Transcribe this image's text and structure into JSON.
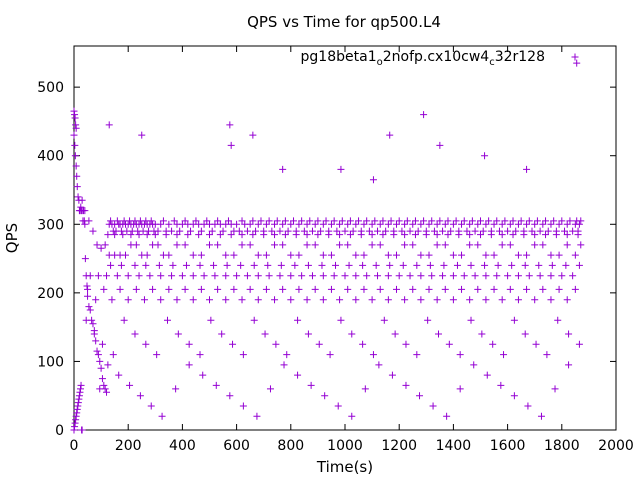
{
  "chart_data": {
    "type": "scatter",
    "title": "QPS vs Time for qp500.L4",
    "xlabel": "Time(s)",
    "ylabel": "QPS",
    "xlim": [
      0,
      2000
    ],
    "ylim": [
      0,
      560
    ],
    "xticks": [
      0,
      200,
      400,
      600,
      800,
      1000,
      1200,
      1400,
      1600,
      1800,
      2000
    ],
    "yticks": [
      0,
      100,
      200,
      300,
      400,
      500
    ],
    "grid": false,
    "legend_position": "top-right",
    "marker": "+",
    "color": "#9400d3",
    "series": [
      {
        "legend": {
          "base": "pg18beta1",
          "sub1": "o",
          "mid": "2nofp.cx10cw4",
          "sub2": "c",
          "tail": "32r128"
        },
        "x": [
          0,
          3,
          5,
          8,
          10,
          12,
          15,
          18,
          20,
          22,
          25,
          27,
          30,
          33,
          35,
          38,
          40,
          42,
          45,
          48,
          50,
          55,
          60,
          65,
          70,
          75,
          80,
          85,
          90,
          95,
          100,
          105,
          110,
          115,
          120,
          130,
          135,
          140,
          145,
          150,
          155,
          160,
          165,
          170,
          175,
          180,
          185,
          190,
          195,
          200,
          205,
          210,
          215,
          220,
          225,
          230,
          235,
          240,
          245,
          250,
          255,
          260,
          265,
          270,
          275,
          280,
          285,
          290,
          295,
          300,
          310,
          320,
          330,
          340,
          350,
          360,
          370,
          380,
          390,
          400,
          410,
          420,
          430,
          440,
          450,
          460,
          470,
          480,
          490,
          500,
          510,
          520,
          530,
          540,
          550,
          560,
          570,
          580,
          590,
          600,
          610,
          620,
          630,
          640,
          650,
          660,
          670,
          680,
          690,
          700,
          710,
          720,
          730,
          740,
          750,
          760,
          770,
          780,
          790,
          800,
          810,
          820,
          830,
          840,
          850,
          860,
          870,
          880,
          890,
          900,
          910,
          920,
          930,
          940,
          950,
          960,
          970,
          980,
          990,
          1000,
          1010,
          1020,
          1030,
          1040,
          1050,
          1060,
          1070,
          1080,
          1090,
          1100,
          1110,
          1120,
          1130,
          1140,
          1150,
          1160,
          1170,
          1180,
          1190,
          1200,
          1210,
          1220,
          1230,
          1240,
          1250,
          1260,
          1270,
          1280,
          1290,
          1300,
          1310,
          1320,
          1330,
          1340,
          1350,
          1360,
          1370,
          1380,
          1390,
          1400,
          1410,
          1420,
          1430,
          1440,
          1450,
          1460,
          1470,
          1480,
          1490,
          1500,
          1510,
          1520,
          1530,
          1540,
          1550,
          1560,
          1570,
          1580,
          1590,
          1600,
          1610,
          1620,
          1630,
          1640,
          1650,
          1660,
          1670,
          1680,
          1690,
          1700,
          1710,
          1720,
          1730,
          1740,
          1750,
          1760,
          1770,
          1780,
          1790,
          1800,
          1810,
          1820,
          1830,
          1840,
          1850,
          1855,
          1860,
          1865,
          1870,
          0,
          2,
          4,
          6,
          8,
          30,
          40,
          55,
          70,
          85,
          100,
          115,
          130,
          150,
          170,
          190,
          210,
          230,
          250,
          270,
          290,
          310,
          330,
          350,
          380,
          410,
          440,
          470,
          500,
          530,
          560,
          590,
          620,
          650,
          680,
          710,
          740,
          770,
          800,
          830,
          860,
          890,
          920,
          950,
          980,
          1010,
          1040,
          1070,
          1100,
          1130,
          1160,
          1190,
          1220,
          1250,
          1280,
          1310,
          1340,
          1370,
          1400,
          1430,
          1460,
          1490,
          1520,
          1550,
          1580,
          1610,
          1640,
          1670,
          1700,
          1730,
          1760,
          1790,
          1820,
          1850,
          1870,
          125,
          150,
          180,
          210,
          240,
          270,
          300,
          340,
          380,
          420,
          460,
          500,
          540,
          580,
          620,
          660,
          700,
          740,
          780,
          820,
          860,
          900,
          940,
          980,
          1020,
          1060,
          1100,
          1140,
          1180,
          1220,
          1260,
          1300,
          1340,
          1380,
          1420,
          1460,
          1500,
          1540,
          1580,
          1620,
          1660,
          1700,
          1740,
          1780,
          1820,
          1860,
          135,
          175,
          225,
          265,
          315,
          365,
          415,
          465,
          515,
          565,
          615,
          665,
          715,
          765,
          815,
          865,
          915,
          965,
          1015,
          1065,
          1115,
          1165,
          1215,
          1265,
          1315,
          1365,
          1415,
          1465,
          1515,
          1565,
          1615,
          1665,
          1715,
          1765,
          1815,
          1865,
          60,
          90,
          120,
          160,
          200,
          240,
          280,
          320,
          360,
          400,
          440,
          480,
          520,
          560,
          600,
          640,
          680,
          720,
          760,
          800,
          840,
          880,
          920,
          960,
          1000,
          1040,
          1080,
          1120,
          1160,
          1200,
          1240,
          1280,
          1320,
          1360,
          1400,
          1440,
          1480,
          1520,
          1560,
          1600,
          1640,
          1680,
          1720,
          1760,
          1800,
          1840,
          50,
          80,
          110,
          140,
          170,
          200,
          230,
          260,
          290,
          320,
          350,
          380,
          410,
          440,
          470,
          500,
          530,
          560,
          590,
          620,
          650,
          680,
          710,
          740,
          770,
          800,
          830,
          860,
          890,
          920,
          950,
          980,
          1010,
          1040,
          1070,
          1100,
          1130,
          1160,
          1190,
          1220,
          1250,
          1280,
          1310,
          1340,
          1370,
          1400,
          1430,
          1460,
          1490,
          1520,
          1550,
          1580,
          1610,
          1640,
          1670,
          1700,
          1730,
          1760,
          1790,
          1820,
          1850,
          45,
          75,
          105,
          145,
          185,
          225,
          265,
          305,
          345,
          385,
          425,
          465,
          505,
          545,
          585,
          625,
          665,
          705,
          745,
          785,
          825,
          865,
          905,
          945,
          985,
          1025,
          1065,
          1105,
          1145,
          1185,
          1225,
          1265,
          1305,
          1345,
          1385,
          1425,
          1465,
          1505,
          1545,
          1585,
          1625,
          1665,
          1705,
          1745,
          1785,
          1825,
          1865,
          95,
          125,
          165,
          205,
          245,
          285,
          325,
          375,
          425,
          475,
          525,
          575,
          625,
          675,
          725,
          775,
          825,
          875,
          925,
          975,
          1025,
          1075,
          1125,
          1175,
          1225,
          1275,
          1325,
          1375,
          1425,
          1475,
          1525,
          1575,
          1625,
          1675,
          1725,
          1775,
          1825,
          0,
          2,
          4,
          6,
          8,
          10,
          12,
          14,
          16,
          18,
          20,
          22,
          24,
          26,
          28,
          30,
          130,
          250,
          575,
          580,
          660,
          770,
          985,
          1105,
          1165,
          1290,
          1350,
          1515,
          1670,
          1855
        ],
        "y": [
          430,
          415,
          400,
          385,
          370,
          355,
          340,
          335,
          320,
          320,
          325,
          320,
          320,
          305,
          320,
          305,
          300,
          250,
          225,
          210,
          195,
          180,
          175,
          160,
          155,
          145,
          130,
          115,
          110,
          100,
          90,
          75,
          65,
          60,
          55,
          300,
          305,
          300,
          290,
          300,
          290,
          305,
          300,
          300,
          290,
          300,
          305,
          300,
          290,
          300,
          305,
          300,
          290,
          300,
          305,
          300,
          290,
          300,
          305,
          300,
          290,
          300,
          305,
          300,
          290,
          300,
          305,
          300,
          290,
          300,
          290,
          300,
          305,
          290,
          300,
          290,
          305,
          300,
          290,
          300,
          305,
          300,
          290,
          300,
          305,
          300,
          290,
          300,
          305,
          300,
          290,
          300,
          305,
          300,
          290,
          300,
          305,
          300,
          290,
          300,
          290,
          305,
          300,
          290,
          300,
          305,
          290,
          300,
          305,
          290,
          300,
          305,
          290,
          300,
          305,
          290,
          300,
          305,
          290,
          300,
          305,
          290,
          300,
          305,
          290,
          300,
          305,
          290,
          300,
          305,
          290,
          300,
          305,
          290,
          300,
          305,
          290,
          300,
          305,
          290,
          300,
          305,
          290,
          300,
          305,
          290,
          300,
          305,
          290,
          300,
          305,
          290,
          300,
          305,
          290,
          300,
          305,
          290,
          300,
          305,
          290,
          300,
          305,
          290,
          300,
          305,
          290,
          300,
          305,
          290,
          300,
          305,
          290,
          300,
          305,
          290,
          300,
          305,
          290,
          300,
          305,
          290,
          300,
          305,
          290,
          300,
          305,
          290,
          300,
          305,
          290,
          300,
          305,
          290,
          300,
          305,
          290,
          300,
          305,
          290,
          300,
          305,
          290,
          300,
          305,
          290,
          300,
          305,
          290,
          300,
          305,
          290,
          300,
          305,
          290,
          300,
          305,
          290,
          300,
          305,
          290,
          300,
          305,
          290,
          300,
          305,
          290,
          300,
          305,
          465,
          460,
          455,
          445,
          440,
          335,
          320,
          305,
          290,
          270,
          265,
          270,
          255,
          255,
          255,
          255,
          270,
          270,
          255,
          255,
          270,
          270,
          255,
          255,
          270,
          270,
          255,
          255,
          270,
          270,
          255,
          255,
          270,
          270,
          255,
          255,
          270,
          270,
          255,
          255,
          270,
          270,
          255,
          255,
          270,
          270,
          255,
          255,
          270,
          270,
          255,
          255,
          270,
          270,
          255,
          255,
          270,
          270,
          255,
          255,
          270,
          270,
          255,
          255,
          270,
          270,
          255,
          255,
          270,
          270,
          255,
          255,
          270,
          255,
          270,
          285,
          285,
          285,
          285,
          285,
          285,
          285,
          285,
          285,
          285,
          285,
          285,
          285,
          285,
          285,
          285,
          285,
          285,
          285,
          285,
          285,
          285,
          285,
          285,
          285,
          285,
          285,
          285,
          285,
          285,
          285,
          285,
          285,
          285,
          285,
          285,
          285,
          285,
          285,
          285,
          285,
          285,
          285,
          285,
          285,
          285,
          240,
          240,
          240,
          240,
          240,
          240,
          240,
          240,
          240,
          240,
          240,
          240,
          240,
          240,
          240,
          240,
          240,
          240,
          240,
          240,
          240,
          240,
          240,
          240,
          240,
          240,
          240,
          240,
          240,
          240,
          240,
          240,
          240,
          240,
          240,
          240,
          225,
          225,
          225,
          225,
          225,
          225,
          225,
          225,
          225,
          225,
          225,
          225,
          225,
          225,
          225,
          225,
          225,
          225,
          225,
          225,
          225,
          225,
          225,
          225,
          225,
          225,
          225,
          225,
          225,
          225,
          225,
          225,
          225,
          225,
          225,
          225,
          225,
          225,
          225,
          225,
          225,
          225,
          225,
          225,
          225,
          225,
          205,
          190,
          205,
          190,
          205,
          190,
          205,
          190,
          205,
          190,
          205,
          190,
          205,
          190,
          205,
          190,
          205,
          190,
          205,
          190,
          205,
          190,
          205,
          190,
          205,
          190,
          205,
          190,
          205,
          190,
          205,
          190,
          205,
          190,
          205,
          190,
          205,
          190,
          205,
          190,
          205,
          190,
          205,
          190,
          205,
          190,
          205,
          190,
          205,
          190,
          205,
          190,
          205,
          190,
          205,
          190,
          205,
          190,
          205,
          190,
          205,
          160,
          140,
          125,
          110,
          160,
          140,
          125,
          110,
          160,
          140,
          125,
          110,
          160,
          140,
          125,
          110,
          160,
          140,
          125,
          110,
          160,
          140,
          125,
          110,
          160,
          140,
          125,
          110,
          160,
          140,
          125,
          110,
          160,
          140,
          125,
          110,
          160,
          140,
          125,
          110,
          160,
          140,
          125,
          110,
          160,
          140,
          125,
          60,
          95,
          80,
          65,
          50,
          35,
          20,
          60,
          95,
          80,
          65,
          50,
          35,
          20,
          60,
          95,
          80,
          65,
          50,
          35,
          20,
          60,
          95,
          80,
          65,
          50,
          35,
          20,
          60,
          95,
          80,
          65,
          50,
          35,
          20,
          60,
          95,
          0,
          5,
          10,
          15,
          20,
          25,
          30,
          35,
          40,
          45,
          50,
          55,
          60,
          65,
          0,
          0,
          445,
          430,
          445,
          415,
          430,
          380,
          380,
          365,
          430,
          460,
          415,
          400,
          380,
          535
        ]
      }
    ]
  }
}
